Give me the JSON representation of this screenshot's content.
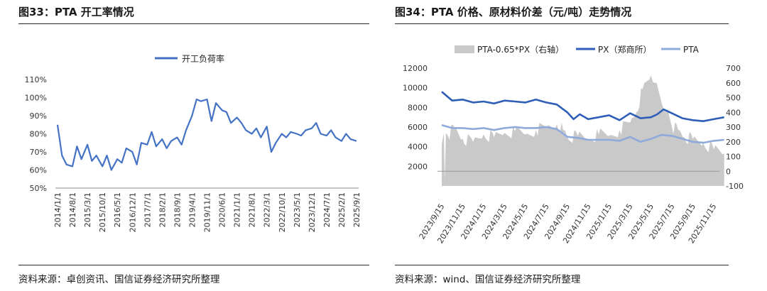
{
  "left": {
    "title": "图33：PTA 开工率情况",
    "source": "资料来源：卓创资讯、国信证券经济研究所整理"
  },
  "right": {
    "title": "图34：PTA 价格、原材料价差（元/吨）走势情况",
    "source": "资料来源：wind、国信证券经济研究所整理"
  },
  "chart_data": [
    {
      "type": "line",
      "title": "",
      "legend": [
        "开工负荷率"
      ],
      "legend_position": "top-center",
      "series_color": "#4472C4",
      "yticks": [
        "50%",
        "60%",
        "70%",
        "80%",
        "90%",
        "100%",
        "110%"
      ],
      "ylim": [
        50,
        110
      ],
      "categories": [
        "2014/1/1",
        "2014/8/1",
        "2015/3/1",
        "2015/10/1",
        "2016/5/1",
        "2016/12/1",
        "2017/7/1",
        "2018/2/1",
        "2018/9/1",
        "2019/4/1",
        "2019/11/1",
        "2020/6/1",
        "2021/1/1",
        "2021/8/1",
        "2022/3/1",
        "2022/10/1",
        "2023/5/1",
        "2023/12/1",
        "2024/7/1",
        "2025/2/1",
        "2025/9/1"
      ],
      "series": [
        {
          "name": "开工负荷率",
          "x": [
            0,
            0.3,
            0.6,
            1,
            1.3,
            1.6,
            2,
            2.3,
            2.6,
            3,
            3.3,
            3.6,
            4,
            4.3,
            4.6,
            5,
            5.3,
            5.6,
            6,
            6.3,
            6.6,
            7,
            7.3,
            7.6,
            8,
            8.3,
            8.6,
            9,
            9.3,
            9.6,
            10,
            10.3,
            10.6,
            11,
            11.3,
            11.6,
            12,
            12.3,
            12.6,
            13,
            13.3,
            13.6,
            14,
            14.3,
            14.6,
            15,
            15.3,
            15.6,
            16,
            16.3,
            16.6,
            17,
            17.3,
            17.6,
            18,
            18.3,
            18.6,
            19,
            19.3,
            19.6,
            20
          ],
          "values": [
            85,
            68,
            63,
            62,
            73,
            66,
            74,
            65,
            68,
            62,
            68,
            60,
            66,
            64,
            72,
            70,
            63,
            75,
            74,
            81,
            73,
            77,
            72,
            76,
            78,
            74,
            82,
            90,
            99,
            98,
            99,
            87,
            97,
            93,
            92,
            86,
            89,
            86,
            82,
            80,
            83,
            78,
            84,
            70,
            75,
            80,
            78,
            81,
            80,
            79,
            82,
            83,
            86,
            80,
            79,
            82,
            78,
            76,
            80,
            77,
            76
          ]
        }
      ]
    },
    {
      "type": "line",
      "title": "",
      "legend": [
        "PTA-0.65*PX（右轴）",
        "PX（郑商所）",
        "PTA"
      ],
      "legend_position": "top-center",
      "colors": {
        "spread": "#C9C9C9",
        "px": "#2E5EB8",
        "pta": "#8EAADB"
      },
      "yticks_left": [
        "2000",
        "4000",
        "6000",
        "8000",
        "10000",
        "12000"
      ],
      "yticks_right": [
        "-100",
        "0",
        "100",
        "200",
        "300",
        "400",
        "500",
        "600",
        "700"
      ],
      "ylim_left": [
        0,
        12000
      ],
      "ylim_right": [
        -100,
        700
      ],
      "categories": [
        "2023/9/15",
        "2023/11/15",
        "2024/1/15",
        "2024/3/15",
        "2024/5/15",
        "2024/7/15",
        "2024/9/15",
        "2024/11/15",
        "2025/1/15",
        "2025/3/15",
        "2025/5/15",
        "2025/7/15",
        "2025/9/15",
        "2025/11/15"
      ],
      "series": [
        {
          "name": "PX（郑商所）",
          "axis": "left",
          "x": [
            0,
            0.5,
            1,
            1.5,
            2,
            2.5,
            3,
            3.5,
            4,
            4.5,
            5,
            5.5,
            6,
            6.3,
            6.6,
            7,
            7.5,
            8,
            8.5,
            9,
            9.5,
            10,
            10.3,
            10.6,
            11,
            11.5,
            12,
            12.5,
            13,
            13.5
          ],
          "values": [
            9600,
            8700,
            8800,
            8500,
            8600,
            8400,
            8700,
            8600,
            8500,
            8800,
            8500,
            8300,
            7500,
            6800,
            7300,
            6800,
            7000,
            7200,
            6700,
            7400,
            6900,
            7000,
            7300,
            7800,
            7400,
            6900,
            6700,
            6600,
            6800,
            7000
          ]
        },
        {
          "name": "PTA",
          "axis": "left",
          "x": [
            0,
            0.5,
            1,
            1.5,
            2,
            2.5,
            3,
            3.5,
            4,
            4.5,
            5,
            5.5,
            6,
            6.5,
            7,
            7.5,
            8,
            8.5,
            9,
            9.5,
            10,
            10.5,
            11,
            11.5,
            12,
            12.5,
            13,
            13.5
          ],
          "values": [
            6200,
            5900,
            5900,
            5800,
            5900,
            5700,
            5900,
            6000,
            5900,
            5900,
            6000,
            5800,
            5000,
            4900,
            4700,
            4700,
            4700,
            4600,
            5000,
            4500,
            4800,
            5200,
            5100,
            4800,
            4500,
            4400,
            4600,
            4700
          ]
        },
        {
          "name": "PTA-0.65*PX（右轴）",
          "axis": "right",
          "kind": "area",
          "x": [
            0,
            0.1,
            0.15,
            0.2,
            0.3,
            0.6,
            1,
            1.5,
            2,
            2.5,
            3,
            3.5,
            4,
            4.5,
            5,
            5.5,
            5.8,
            6,
            6.5,
            7,
            7.5,
            8,
            8.5,
            9,
            9.3,
            9.6,
            10,
            10.2,
            10.5,
            10.7,
            10.9,
            11,
            11.3,
            11.6,
            12,
            12.5,
            13,
            13.5
          ],
          "values": [
            180,
            260,
            -60,
            260,
            240,
            300,
            220,
            200,
            250,
            230,
            260,
            270,
            250,
            280,
            300,
            320,
            280,
            230,
            240,
            220,
            250,
            240,
            280,
            330,
            400,
            560,
            650,
            600,
            470,
            400,
            360,
            300,
            280,
            230,
            220,
            190,
            150,
            120
          ]
        }
      ]
    }
  ]
}
